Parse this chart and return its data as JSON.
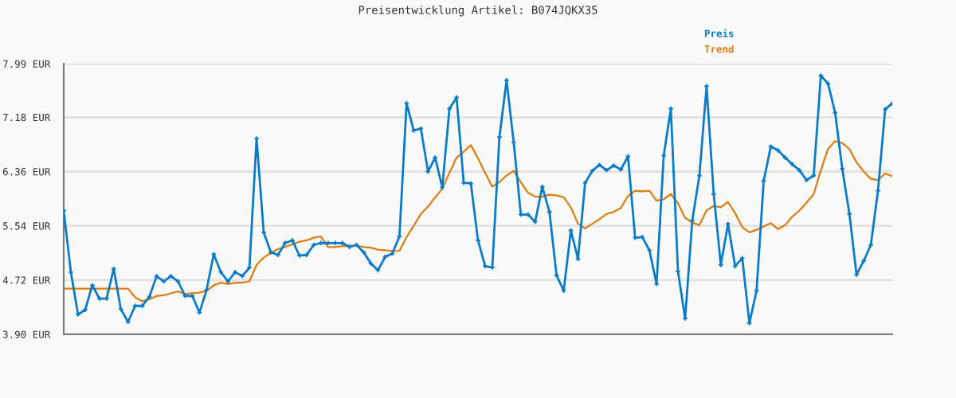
{
  "chart_data": {
    "type": "line",
    "title": "Preisentwicklung Artikel: B074JQKX35",
    "categories": [
      null,
      null,
      null,
      null,
      null,
      null,
      null,
      null,
      null,
      null,
      null,
      null,
      null,
      null,
      null,
      null,
      null,
      null,
      null,
      null,
      null,
      null,
      null,
      null,
      null,
      null,
      null,
      null,
      null,
      null,
      null,
      null,
      null,
      null,
      null,
      null,
      null,
      null,
      null,
      null,
      null,
      null,
      null,
      null,
      null,
      null,
      null,
      null,
      null,
      null,
      null,
      null,
      null,
      null,
      null,
      null,
      null,
      null,
      null,
      null,
      null,
      null,
      null,
      null,
      null,
      null,
      null,
      null,
      null,
      null,
      null,
      null,
      null,
      null,
      null,
      null,
      null,
      null,
      null,
      null,
      null,
      null,
      null,
      null,
      null,
      null,
      null,
      null,
      null,
      null,
      null,
      null,
      null,
      null,
      null,
      null,
      null,
      null,
      null,
      null,
      null,
      null,
      null,
      null,
      null,
      null,
      null,
      null,
      null,
      null,
      null,
      null,
      null,
      null,
      null,
      null,
      null
    ],
    "series": [
      {
        "name": "Preis",
        "color": "#0a7bc9",
        "marker": "cross",
        "values": [
          5.77,
          4.84,
          4.2,
          4.27,
          4.64,
          4.44,
          4.44,
          4.89,
          4.28,
          4.09,
          4.33,
          4.33,
          4.47,
          4.78,
          4.7,
          4.78,
          4.7,
          4.48,
          4.48,
          4.23,
          4.57,
          5.11,
          4.84,
          4.7,
          4.84,
          4.78,
          4.91,
          6.86,
          5.44,
          5.14,
          5.1,
          5.28,
          5.32,
          5.09,
          5.1,
          5.25,
          5.28,
          5.28,
          5.28,
          5.28,
          5.22,
          5.25,
          5.14,
          4.97,
          4.87,
          5.07,
          5.12,
          5.38,
          7.39,
          6.98,
          7.01,
          6.36,
          6.57,
          6.12,
          7.31,
          7.48,
          6.19,
          6.18,
          5.32,
          4.93,
          4.91,
          6.88,
          7.74,
          6.8,
          5.71,
          5.71,
          5.6,
          6.13,
          5.75,
          4.79,
          4.56,
          5.47,
          5.04,
          6.19,
          6.37,
          6.46,
          6.38,
          6.45,
          6.39,
          6.59,
          5.36,
          5.37,
          5.17,
          4.66,
          6.6,
          7.31,
          4.85,
          4.14,
          5.62,
          6.3,
          7.65,
          6.02,
          4.95,
          5.57,
          4.93,
          5.05,
          4.07,
          4.56,
          6.22,
          6.74,
          6.68,
          6.57,
          6.47,
          6.38,
          6.23,
          6.3,
          7.81,
          7.69,
          7.25,
          6.4,
          5.72,
          4.8,
          5.01,
          5.25,
          6.07,
          7.3,
          7.39
        ]
      },
      {
        "name": "Trend",
        "color": "#e07c0e",
        "marker": "none",
        "values": [
          4.59,
          4.59,
          4.59,
          4.59,
          4.59,
          4.59,
          4.59,
          4.59,
          4.59,
          4.59,
          4.46,
          4.4,
          4.43,
          4.48,
          4.49,
          4.52,
          4.55,
          4.51,
          4.52,
          4.53,
          4.56,
          4.64,
          4.68,
          4.66,
          4.68,
          4.68,
          4.7,
          4.95,
          5.06,
          5.13,
          5.19,
          5.22,
          5.26,
          5.3,
          5.32,
          5.36,
          5.38,
          5.22,
          5.22,
          5.23,
          5.24,
          5.24,
          5.22,
          5.21,
          5.18,
          5.17,
          5.16,
          5.16,
          5.37,
          5.54,
          5.72,
          5.83,
          5.97,
          6.1,
          6.34,
          6.57,
          6.66,
          6.76,
          6.56,
          6.34,
          6.13,
          6.2,
          6.3,
          6.37,
          6.2,
          6.04,
          5.98,
          5.98,
          6.01,
          6.0,
          5.97,
          5.82,
          5.57,
          5.5,
          5.57,
          5.64,
          5.72,
          5.75,
          5.81,
          5.99,
          6.07,
          6.06,
          6.07,
          5.92,
          5.94,
          6.02,
          5.88,
          5.66,
          5.59,
          5.55,
          5.77,
          5.84,
          5.82,
          5.9,
          5.73,
          5.52,
          5.44,
          5.48,
          5.53,
          5.58,
          5.49,
          5.55,
          5.68,
          5.77,
          5.89,
          6.02,
          6.38,
          6.7,
          6.82,
          6.79,
          6.7,
          6.5,
          6.36,
          6.25,
          6.23,
          6.33,
          6.29
        ]
      }
    ],
    "ylim": [
      3.9,
      7.99
    ],
    "yticks": [
      {
        "value": 3.9,
        "label": "3.90 EUR"
      },
      {
        "value": 4.72,
        "label": "4.72 EUR"
      },
      {
        "value": 5.54,
        "label": "5.54 EUR"
      },
      {
        "value": 6.36,
        "label": "6.36 EUR"
      },
      {
        "value": 7.18,
        "label": "7.18 EUR"
      },
      {
        "value": 7.99,
        "label": "7.99 EUR"
      }
    ],
    "tick_labels": "y",
    "grid": "y",
    "legend": "top right",
    "line_style": "solid"
  }
}
